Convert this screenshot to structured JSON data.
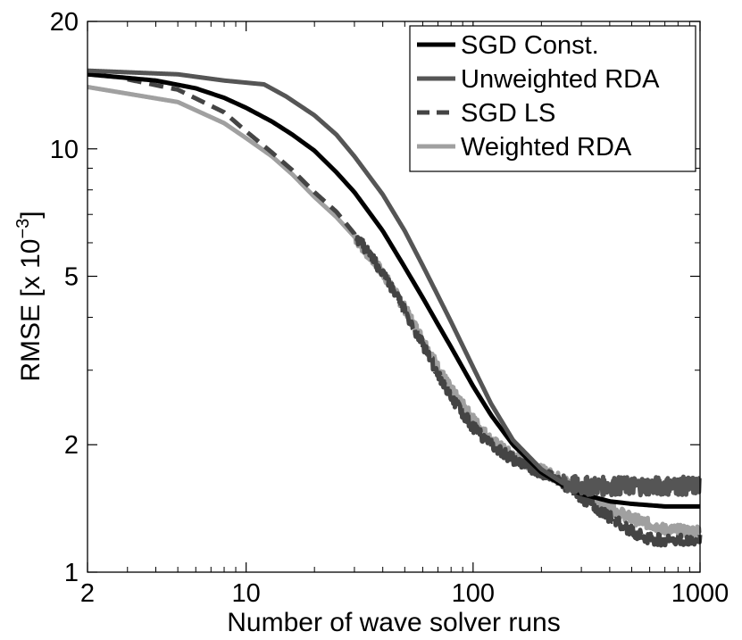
{
  "chart_data": {
    "type": "line",
    "xlabel": "Number of wave solver runs",
    "ylabel_main": "RMSE [x 10",
    "ylabel_exp": "−3",
    "ylabel_close": "]",
    "x_scale": "log",
    "y_scale": "log",
    "xlim": [
      2,
      1000
    ],
    "ylim": [
      1,
      20
    ],
    "x_ticks": [
      2,
      10,
      100,
      1000
    ],
    "x_tick_labels": [
      "2",
      "10",
      "100",
      "1000"
    ],
    "y_ticks": [
      1,
      2,
      5,
      10,
      20
    ],
    "y_tick_labels": [
      "1",
      "2",
      "5",
      "10",
      "20"
    ],
    "grid": false,
    "legend_position": "top-right",
    "series": [
      {
        "name": "SGD Const.",
        "color": "#000000",
        "dash": "solid",
        "noise": 0,
        "x": [
          2,
          4,
          6,
          8,
          10,
          13,
          16,
          20,
          25,
          30,
          40,
          50,
          60,
          70,
          80,
          100,
          120,
          150,
          200,
          250,
          300,
          400,
          500,
          700,
          1000
        ],
        "y": [
          15.0,
          14.5,
          13.9,
          13.2,
          12.5,
          11.6,
          10.8,
          9.9,
          8.8,
          7.9,
          6.4,
          5.25,
          4.45,
          3.85,
          3.4,
          2.75,
          2.35,
          2.0,
          1.72,
          1.6,
          1.53,
          1.47,
          1.45,
          1.43,
          1.43
        ]
      },
      {
        "name": "Unweighted RDA",
        "color": "#555555",
        "dash": "solid",
        "noise": 0.05,
        "noise_from": 250,
        "x": [
          2,
          5,
          8,
          12,
          15,
          20,
          25,
          30,
          40,
          50,
          60,
          70,
          80,
          100,
          120,
          150,
          200,
          250,
          300,
          400,
          500,
          700,
          1000
        ],
        "y": [
          15.3,
          15.0,
          14.5,
          14.2,
          13.3,
          12.0,
          10.8,
          9.6,
          7.8,
          6.4,
          5.3,
          4.5,
          3.9,
          3.05,
          2.5,
          2.05,
          1.75,
          1.62,
          1.6,
          1.6,
          1.6,
          1.6,
          1.6
        ]
      },
      {
        "name": "SGD LS",
        "color": "#444444",
        "dash": "dashed",
        "noise": 0.03,
        "noise_from": 30,
        "x": [
          3,
          5,
          8,
          10,
          13,
          16,
          20,
          25,
          30,
          40,
          50,
          60,
          70,
          80,
          100,
          120,
          150,
          200,
          250,
          300,
          400,
          500,
          600,
          700,
          1000
        ],
        "y": [
          14.6,
          13.8,
          12.2,
          11.0,
          9.8,
          8.9,
          7.9,
          7.1,
          6.3,
          5.1,
          4.15,
          3.45,
          2.95,
          2.6,
          2.2,
          2.0,
          1.85,
          1.72,
          1.62,
          1.5,
          1.35,
          1.25,
          1.2,
          1.19,
          1.19
        ]
      },
      {
        "name": "Weighted RDA",
        "color": "#a0a0a0",
        "dash": "solid",
        "noise": 0.03,
        "noise_from": 30,
        "x": [
          2,
          5,
          8,
          10,
          13,
          16,
          20,
          25,
          30,
          40,
          50,
          60,
          70,
          80,
          100,
          120,
          150,
          200,
          250,
          300,
          400,
          500,
          600,
          700,
          1000
        ],
        "y": [
          14.0,
          12.9,
          11.5,
          10.6,
          9.6,
          8.7,
          7.7,
          6.9,
          6.2,
          5.1,
          4.2,
          3.55,
          3.05,
          2.7,
          2.3,
          2.05,
          1.88,
          1.74,
          1.65,
          1.55,
          1.42,
          1.34,
          1.3,
          1.26,
          1.25
        ]
      }
    ]
  }
}
